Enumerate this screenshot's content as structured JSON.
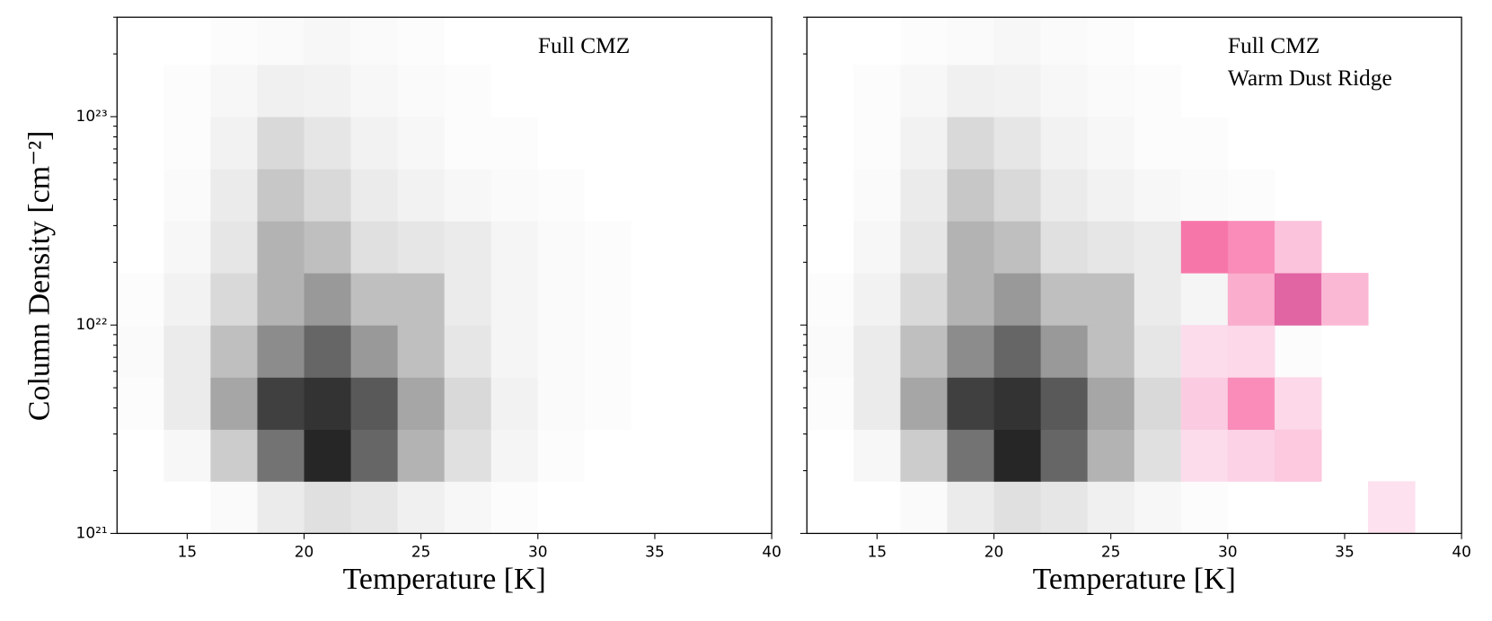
{
  "chart_data": [
    {
      "type": "heatmap",
      "xlabel": "Temperature [K]",
      "ylabel": "Column Density [cm⁻²]",
      "xlim": [
        12,
        40
      ],
      "xticks": [
        15,
        20,
        25,
        30,
        35,
        40
      ],
      "ylim": [
        1e+21,
        3e+23
      ],
      "yscale": "log",
      "show_ytick_labels": true,
      "yticks": [
        {
          "value": 1e+21,
          "label": "10²¹"
        },
        {
          "value": 1e+22,
          "label": "10²²"
        },
        {
          "value": 1e+23,
          "label": "10²³"
        }
      ],
      "yminorticks": [
        2e+21,
        3e+21,
        4e+21,
        5e+21,
        6e+21,
        7e+21,
        8e+21,
        9e+21,
        2e+22,
        3e+22,
        4e+22,
        5e+22,
        6e+22,
        7e+22,
        8e+22,
        9e+22,
        2e+23,
        3e+23
      ],
      "xbins": [
        12,
        14,
        16,
        18,
        20,
        22,
        24,
        26,
        28,
        30,
        32,
        34,
        36,
        38,
        40
      ],
      "ybins": [
        1e+21,
        1.78e+21,
        3.16e+21,
        5.62e+21,
        1e+22,
        1.78e+22,
        3.16e+22,
        5.62e+22,
        1e+23,
        1.78e+23,
        3e+23
      ],
      "vmax": 100,
      "series": [
        {
          "name": "Full CMZ",
          "color": "#000000",
          "colors": [
            "#ffffff",
            "#000000"
          ],
          "values": [
            [
              0,
              0,
              2,
              8,
              12,
              10,
              6,
              3,
              1,
              0,
              0,
              0,
              0,
              0
            ],
            [
              0,
              3,
              20,
              55,
              85,
              60,
              30,
              12,
              4,
              1,
              0,
              0,
              0,
              0
            ],
            [
              1,
              8,
              35,
              75,
              80,
              65,
              35,
              15,
              5,
              2,
              1,
              0,
              0,
              0
            ],
            [
              2,
              8,
              25,
              45,
              60,
              40,
              25,
              10,
              4,
              2,
              1,
              0,
              0,
              0
            ],
            [
              1,
              5,
              15,
              30,
              40,
              25,
              25,
              8,
              4,
              2,
              1,
              0,
              0,
              0
            ],
            [
              0,
              3,
              10,
              30,
              25,
              12,
              10,
              8,
              4,
              2,
              1,
              0,
              0,
              0
            ],
            [
              0,
              2,
              8,
              22,
              15,
              8,
              5,
              3,
              2,
              1,
              0,
              0,
              0,
              0
            ],
            [
              0,
              1,
              5,
              15,
              10,
              5,
              3,
              1,
              1,
              0,
              0,
              0,
              0,
              0
            ],
            [
              0,
              1,
              3,
              6,
              5,
              3,
              2,
              1,
              0,
              0,
              0,
              0,
              0,
              0
            ],
            [
              0,
              0,
              1,
              2,
              3,
              2,
              1,
              0,
              0,
              0,
              0,
              0,
              0,
              0
            ]
          ]
        }
      ]
    },
    {
      "type": "heatmap",
      "xlabel": "Temperature [K]",
      "xlim": [
        12,
        40
      ],
      "xticks": [
        15,
        20,
        25,
        30,
        35,
        40
      ],
      "ylim": [
        1e+21,
        3e+23
      ],
      "yscale": "log",
      "show_ytick_labels": false,
      "yticks": [
        1e+21,
        1e+22,
        1e+23
      ],
      "yminorticks": [
        2e+21,
        3e+21,
        4e+21,
        5e+21,
        6e+21,
        7e+21,
        8e+21,
        9e+21,
        2e+22,
        3e+22,
        4e+22,
        5e+22,
        6e+22,
        7e+22,
        8e+22,
        9e+22,
        2e+23,
        3e+23
      ],
      "xbins": [
        12,
        14,
        16,
        18,
        20,
        22,
        24,
        26,
        28,
        30,
        32,
        34,
        36,
        38,
        40
      ],
      "ybins": [
        1e+21,
        1.78e+21,
        3.16e+21,
        5.62e+21,
        1e+22,
        1.78e+22,
        3.16e+22,
        5.62e+22,
        1e+23,
        1.78e+23,
        3e+23
      ],
      "vmax": 100,
      "series": [
        {
          "name": "Full CMZ",
          "color": "#000000",
          "colors": [
            "#ffffff",
            "#000000"
          ],
          "values": [
            [
              0,
              0,
              2,
              8,
              12,
              10,
              6,
              3,
              1,
              0,
              0,
              0,
              0,
              0
            ],
            [
              0,
              3,
              20,
              55,
              85,
              60,
              30,
              12,
              4,
              1,
              0,
              0,
              0,
              0
            ],
            [
              1,
              8,
              35,
              75,
              80,
              65,
              35,
              15,
              5,
              2,
              1,
              0,
              0,
              0
            ],
            [
              2,
              8,
              25,
              45,
              60,
              40,
              25,
              10,
              4,
              2,
              1,
              0,
              0,
              0
            ],
            [
              1,
              5,
              15,
              30,
              40,
              25,
              25,
              8,
              4,
              2,
              1,
              0,
              0,
              0
            ],
            [
              0,
              3,
              10,
              30,
              25,
              12,
              10,
              8,
              4,
              2,
              1,
              0,
              0,
              0
            ],
            [
              0,
              2,
              8,
              22,
              15,
              8,
              5,
              3,
              2,
              1,
              0,
              0,
              0,
              0
            ],
            [
              0,
              1,
              5,
              15,
              10,
              5,
              3,
              1,
              1,
              0,
              0,
              0,
              0,
              0
            ],
            [
              0,
              1,
              3,
              6,
              5,
              3,
              2,
              1,
              0,
              0,
              0,
              0,
              0,
              0
            ],
            [
              0,
              0,
              1,
              2,
              3,
              2,
              1,
              0,
              0,
              0,
              0,
              0,
              0,
              0
            ]
          ]
        },
        {
          "name": "Warm Dust Ridge",
          "color": "#c51bb5",
          "colors": [
            "#fde0ef",
            "#f768a1",
            "#7a0177"
          ],
          "values": [
            [
              0,
              0,
              0,
              0,
              0,
              0,
              0,
              0,
              0,
              0,
              0,
              0,
              1,
              0
            ],
            [
              0,
              0,
              0,
              0,
              0,
              0,
              0,
              0,
              3,
              8,
              12,
              0,
              0,
              0
            ],
            [
              0,
              0,
              0,
              0,
              0,
              0,
              0,
              0,
              10,
              40,
              5,
              0,
              0,
              0
            ],
            [
              0,
              0,
              0,
              0,
              0,
              0,
              0,
              0,
              3,
              5,
              0,
              0,
              0,
              0
            ],
            [
              0,
              0,
              0,
              0,
              0,
              0,
              0,
              0,
              0,
              25,
              60,
              20,
              0,
              0
            ],
            [
              0,
              0,
              0,
              0,
              0,
              0,
              0,
              0,
              50,
              40,
              15,
              0,
              0,
              0
            ],
            [
              0,
              0,
              0,
              0,
              0,
              0,
              0,
              0,
              0,
              0,
              0,
              0,
              0,
              0
            ],
            [
              0,
              0,
              0,
              0,
              0,
              0,
              0,
              0,
              0,
              0,
              0,
              0,
              0,
              0
            ],
            [
              0,
              0,
              0,
              0,
              0,
              0,
              0,
              0,
              0,
              0,
              0,
              0,
              0,
              0
            ],
            [
              0,
              0,
              0,
              0,
              0,
              0,
              0,
              0,
              0,
              0,
              0,
              0,
              0,
              0
            ]
          ]
        }
      ]
    }
  ]
}
